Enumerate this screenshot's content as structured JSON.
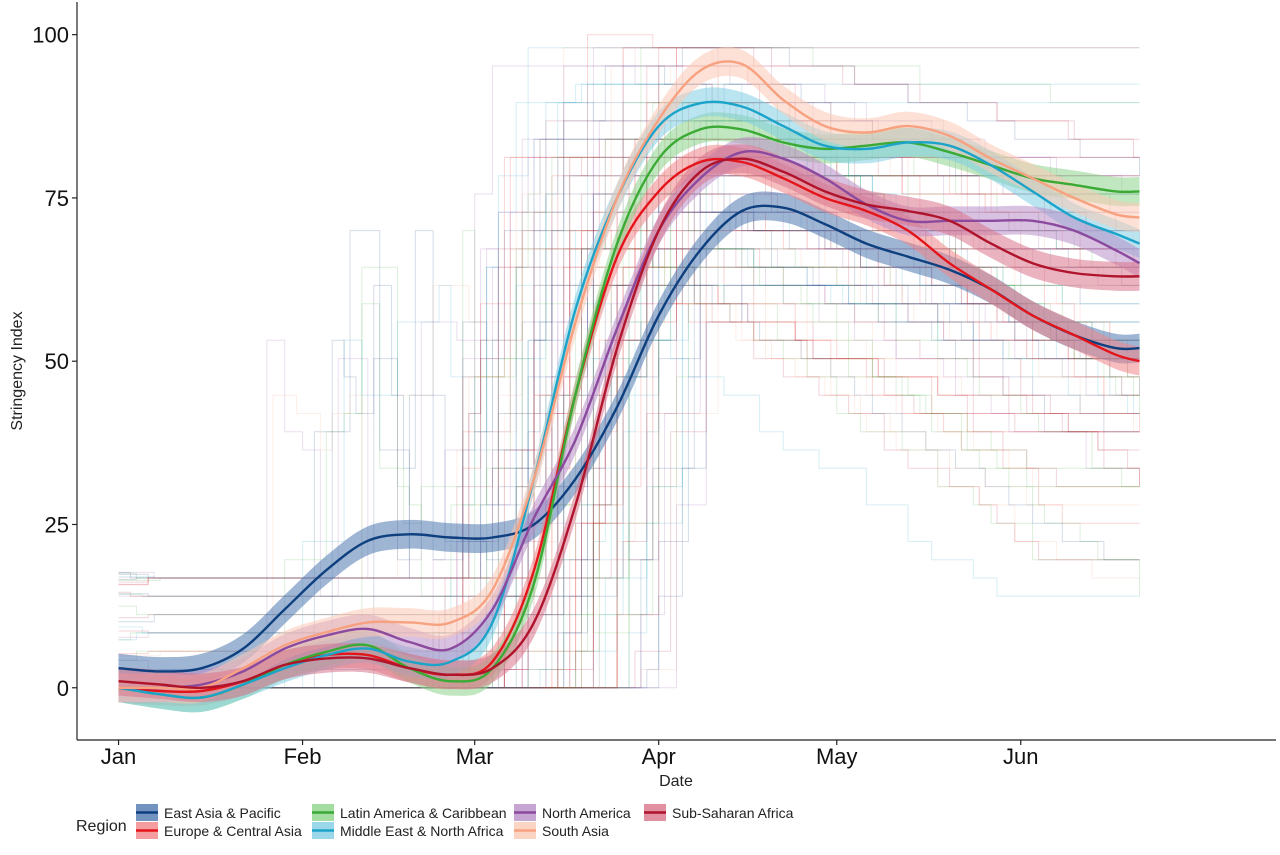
{
  "chart_data": {
    "type": "line",
    "xlabel": "Date",
    "ylabel": "Stringency Index",
    "x_ticks": [
      "Jan",
      "Feb",
      "Mar",
      "Apr",
      "May",
      "Jun"
    ],
    "x_tick_dates": [
      "2020-01-01",
      "2020-02-01",
      "2020-03-01",
      "2020-04-01",
      "2020-05-01",
      "2020-06-01"
    ],
    "x_range": [
      "2019-12-25",
      "2020-07-14"
    ],
    "y_ticks": [
      0,
      25,
      50,
      75,
      100
    ],
    "ylim": [
      -8,
      105
    ],
    "grid": false,
    "legend": {
      "title": "Region",
      "position": "bottom"
    },
    "x": [
      "2020-01-01",
      "2020-01-08",
      "2020-01-15",
      "2020-01-22",
      "2020-01-29",
      "2020-02-05",
      "2020-02-12",
      "2020-02-19",
      "2020-02-26",
      "2020-03-04",
      "2020-03-11",
      "2020-03-18",
      "2020-03-25",
      "2020-04-01",
      "2020-04-08",
      "2020-04-15",
      "2020-04-22",
      "2020-04-29",
      "2020-05-06",
      "2020-05-13",
      "2020-05-20",
      "2020-05-27",
      "2020-06-03",
      "2020-06-10",
      "2020-06-17",
      "2020-06-21"
    ],
    "series": [
      {
        "name": "East Asia & Pacific",
        "color": "#0e3f7e",
        "band_color": "#4f78b0",
        "values": [
          3,
          2.5,
          3,
          6,
          12,
          18,
          22.5,
          23.5,
          23,
          23,
          25,
          32,
          43,
          57,
          67,
          73,
          73.5,
          71,
          68,
          66,
          64,
          61,
          57,
          54,
          52,
          52
        ]
      },
      {
        "name": "Europe & Central Asia",
        "color": "#e4141b",
        "band_color": "#f08589",
        "values": [
          0,
          -0.5,
          -0.5,
          1,
          3.5,
          5,
          5,
          3,
          2,
          4,
          18,
          45,
          66,
          76,
          80.5,
          80.5,
          78,
          75,
          73,
          70,
          65,
          61,
          57,
          54,
          51,
          50
        ]
      },
      {
        "name": "Latin America & Caribbean",
        "color": "#3aaa35",
        "band_color": "#8dd48a",
        "values": [
          0,
          -1,
          -1.5,
          0.5,
          3.5,
          5.5,
          6.5,
          3,
          1,
          3,
          16,
          45,
          68,
          81,
          85.5,
          85.5,
          83.5,
          82.5,
          83,
          83.5,
          82,
          80,
          78,
          77,
          76,
          76
        ]
      },
      {
        "name": "Middle East & North Africa",
        "color": "#1ca3c9",
        "band_color": "#7fcde3",
        "values": [
          0,
          -1,
          -1.5,
          0.5,
          3,
          5,
          6,
          4,
          4,
          10,
          32,
          58,
          75,
          86,
          89.5,
          89,
          86,
          83,
          82.5,
          83.5,
          83,
          80,
          76,
          72,
          69.5,
          68
        ]
      },
      {
        "name": "North America",
        "color": "#8b4a9e",
        "band_color": "#b98ec8",
        "values": [
          0,
          0,
          0.5,
          2.5,
          6,
          8,
          9,
          7,
          6,
          12,
          26,
          38,
          55,
          70,
          78,
          82,
          81,
          78,
          74,
          71.5,
          71.5,
          71.5,
          71.5,
          70,
          67,
          65
        ]
      },
      {
        "name": "South Asia",
        "color": "#f7a180",
        "band_color": "#fbc9b5",
        "values": [
          0,
          0,
          0,
          3,
          6.5,
          8.5,
          10,
          10,
          10,
          15,
          32,
          56,
          75,
          87,
          94.5,
          95.5,
          90,
          86,
          85,
          86,
          84.5,
          81,
          78,
          75,
          72.5,
          72
        ]
      },
      {
        "name": "Sub-Saharan Africa",
        "color": "#b0142c",
        "band_color": "#d8748a",
        "values": [
          1,
          0.5,
          0,
          1,
          3.5,
          4.5,
          4.5,
          3,
          2,
          3,
          10,
          28,
          52,
          70,
          79,
          81,
          79,
          76,
          74,
          73,
          71.5,
          68,
          65,
          63.5,
          63,
          63
        ]
      }
    ]
  }
}
